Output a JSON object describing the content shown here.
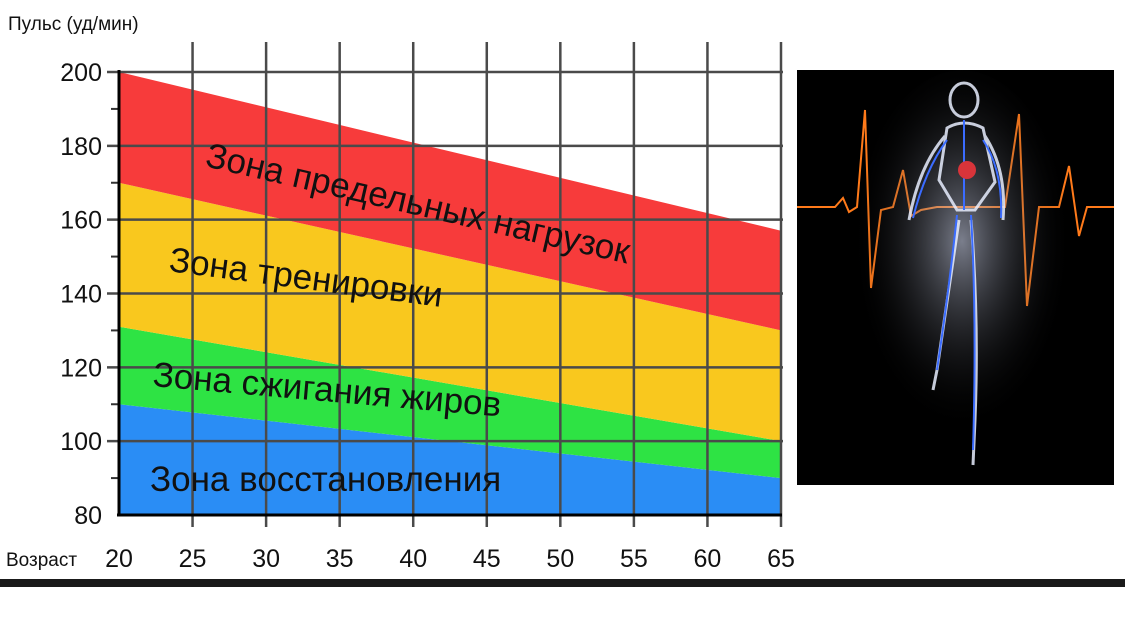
{
  "chart_data": {
    "type": "area",
    "title": "",
    "ylabel": "Пульс (уд/мин)",
    "xlabel": "Возраст",
    "xlim": [
      20,
      65
    ],
    "ylim": [
      80,
      200
    ],
    "x_ticks": [
      20,
      25,
      30,
      35,
      40,
      45,
      50,
      55,
      60,
      65
    ],
    "y_ticks": [
      80,
      100,
      120,
      140,
      160,
      180,
      200
    ],
    "grid": true,
    "zones": [
      {
        "name": "Зона восстановления",
        "from_start": 80,
        "from_end": 80,
        "to_start": 110,
        "to_end": 90,
        "color": "#2a8df5"
      },
      {
        "name": "Зона сжигания жиров",
        "from_start": 110,
        "from_end": 90,
        "to_start": 131,
        "to_end": 100,
        "color": "#2ee344"
      },
      {
        "name": "Зона тренировки",
        "from_start": 131,
        "from_end": 100,
        "to_start": 170,
        "to_end": 130,
        "color": "#f9c81e"
      },
      {
        "name": "Зона предельных нагрузок",
        "from_start": 170,
        "from_end": 130,
        "to_start": 200,
        "to_end": 157,
        "color": "#f73b3b"
      }
    ]
  },
  "image": {
    "subject": "running-anatomy-figure",
    "background": "#000000",
    "pulse_color": "#ff7a1a",
    "vessel_color": "#3b6cff"
  }
}
